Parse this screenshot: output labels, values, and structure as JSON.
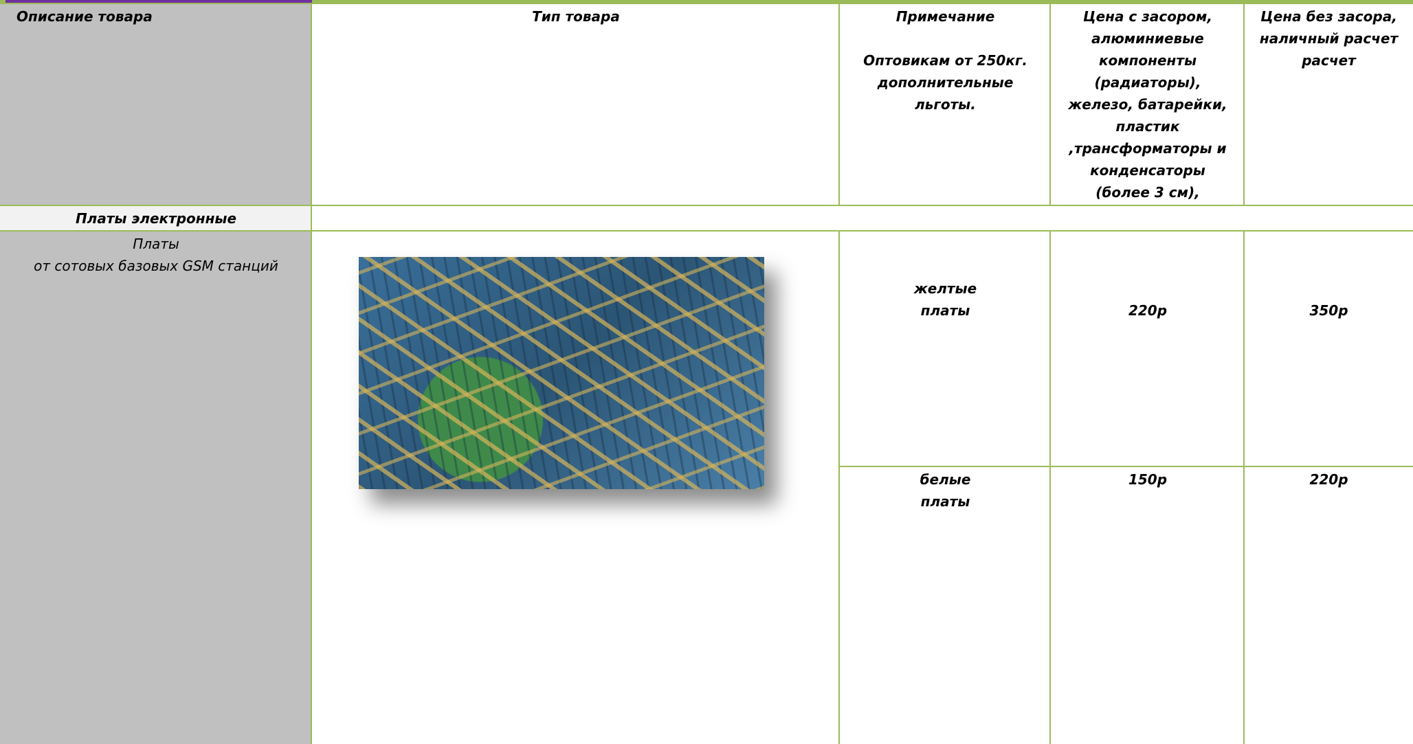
{
  "table": {
    "header": [
      "Описание товара",
      "Тип товара",
      "Примечание\n\nОптовикам от 250кг.\nдополнительные\nльготы.",
      "Цена с засором,\nалюминиевые\nкомпоненты\n(радиаторы),\nжелезо, батарейки,\nпластик\n,трансформаторы и\nконденсаторы\n(более 3 см),",
      "Цена без засора,\nналичный расчет\nрасчет"
    ],
    "section": "Платы электронные",
    "item": "Платы\nот сотовых базовых GSM станций",
    "rows": [
      [
        "желтые\nплаты",
        "220р",
        "350р"
      ],
      [
        "белые\nплаты",
        "150р",
        "220р"
      ]
    ]
  }
}
